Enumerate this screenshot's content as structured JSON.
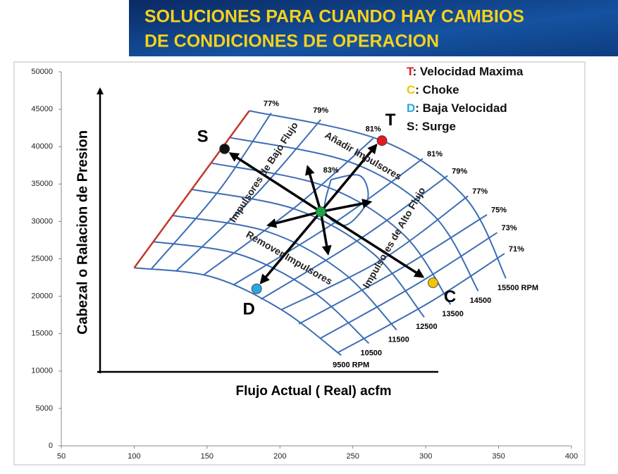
{
  "header": {
    "title_lines": [
      "SOLUCIONES PARA CUANDO HAY CAMBIOS",
      "DE CONDICIONES DE OPERACION"
    ]
  },
  "chart_data": {
    "type": "scatter",
    "x_label": "Flujo Actual ( Real)  acfm",
    "y_label": "Cabezal o  Ralacion de Presion",
    "xlim": [
      50,
      400
    ],
    "ylim": [
      0,
      50000
    ],
    "xticks": [
      50,
      100,
      150,
      200,
      250,
      300,
      350,
      400
    ],
    "yticks": [
      0,
      5000,
      10000,
      15000,
      20000,
      25000,
      30000,
      35000,
      40000,
      45000,
      50000
    ],
    "line_color": "#3d6db4",
    "surge_line": {
      "color": "#c0392b",
      "x": [
        100,
        179
      ],
      "y": [
        23800,
        44800
      ]
    },
    "speed_lines": [
      {
        "name": "9500 RPM",
        "x": [
          100,
          153,
          201,
          242
        ],
        "y": [
          23800,
          22600,
          18200,
          12100
        ]
      },
      {
        "name": "10500",
        "x": [
          113,
          172,
          222,
          261
        ],
        "y": [
          27300,
          25600,
          20700,
          13700
        ]
      },
      {
        "name": "11500",
        "x": [
          126,
          192,
          243,
          280
        ],
        "y": [
          30800,
          28600,
          23200,
          15500
        ]
      },
      {
        "name": "12500",
        "x": [
          139,
          211,
          264,
          299
        ],
        "y": [
          34300,
          31600,
          25700,
          17200
        ]
      },
      {
        "name": "13500",
        "x": [
          153,
          231,
          285,
          317
        ],
        "y": [
          37800,
          34700,
          28200,
          18900
        ]
      },
      {
        "name": "14500",
        "x": [
          166,
          250,
          306,
          336
        ],
        "y": [
          41200,
          37800,
          30700,
          20700
        ]
      },
      {
        "name": "15500 RPM",
        "x": [
          179,
          270,
          327,
          355
        ],
        "y": [
          44800,
          40800,
          33200,
          22400
        ]
      }
    ],
    "efficiency_lines": [
      {
        "name": "77%",
        "x": [
          194,
          158,
          112
        ],
        "y": [
          44500,
          34100,
          23700
        ]
      },
      {
        "name": "79%",
        "x": [
          228,
          183,
          129
        ],
        "y": [
          43600,
          33500,
          23400
        ]
      },
      {
        "name": "81%",
        "x": [
          264,
          211,
          148
        ],
        "y": [
          41100,
          32000,
          22900
        ]
      },
      {
        "name": "83%",
        "x": [
          235,
          255,
          260,
          245,
          231,
          235
        ],
        "y": [
          35600,
          36100,
          32800,
          29500,
          31400,
          35600
        ]
      },
      {
        "name": "81%",
        "x": [
          298,
          238,
          168
        ],
        "y": [
          38400,
          29900,
          21500
        ]
      },
      {
        "name": "79%",
        "x": [
          315,
          256,
          187
        ],
        "y": [
          36100,
          27800,
          19600
        ]
      },
      {
        "name": "77%",
        "x": [
          329,
          270,
          201
        ],
        "y": [
          33400,
          24900,
          18200
        ]
      },
      {
        "name": "75%",
        "x": [
          342,
          282,
          213
        ],
        "y": [
          30900,
          23600,
          16300
        ]
      },
      {
        "name": "73%",
        "x": [
          349,
          293,
          228
        ],
        "y": [
          28500,
          21500,
          14400
        ]
      },
      {
        "name": "71%",
        "x": [
          354,
          302,
          240
        ],
        "y": [
          25700,
          19100,
          12500
        ]
      }
    ],
    "series": [
      {
        "name": "T",
        "description": ": Velocidad  Maxima",
        "color": "#e31b23",
        "x": [
          270
        ],
        "y": [
          40800
        ]
      },
      {
        "name": "C",
        "description": ": Choke",
        "color": "#f2c500",
        "x": [
          305
        ],
        "y": [
          21800
        ]
      },
      {
        "name": "D",
        "description": ": Baja Velocidad",
        "color": "#29a9e0",
        "x": [
          184
        ],
        "y": [
          21000
        ]
      },
      {
        "name": "S",
        "description": ": Surge",
        "color": "#111111",
        "x": [
          162
        ],
        "y": [
          39700
        ]
      }
    ],
    "center": {
      "color": "#1fa34a",
      "x": 228,
      "y": 31300
    },
    "arrows": {
      "x": [
        266,
        298,
        187,
        166,
        219,
        262,
        233,
        192
      ],
      "y": [
        40200,
        22600,
        21800,
        39100,
        37300,
        32600,
        25700,
        29500
      ]
    },
    "annotations": [
      "Impulsores de Bajo Flujo",
      "Añadir Impulsores",
      "Impulsores de Alto Flujo",
      "Remover Impulsores"
    ]
  }
}
